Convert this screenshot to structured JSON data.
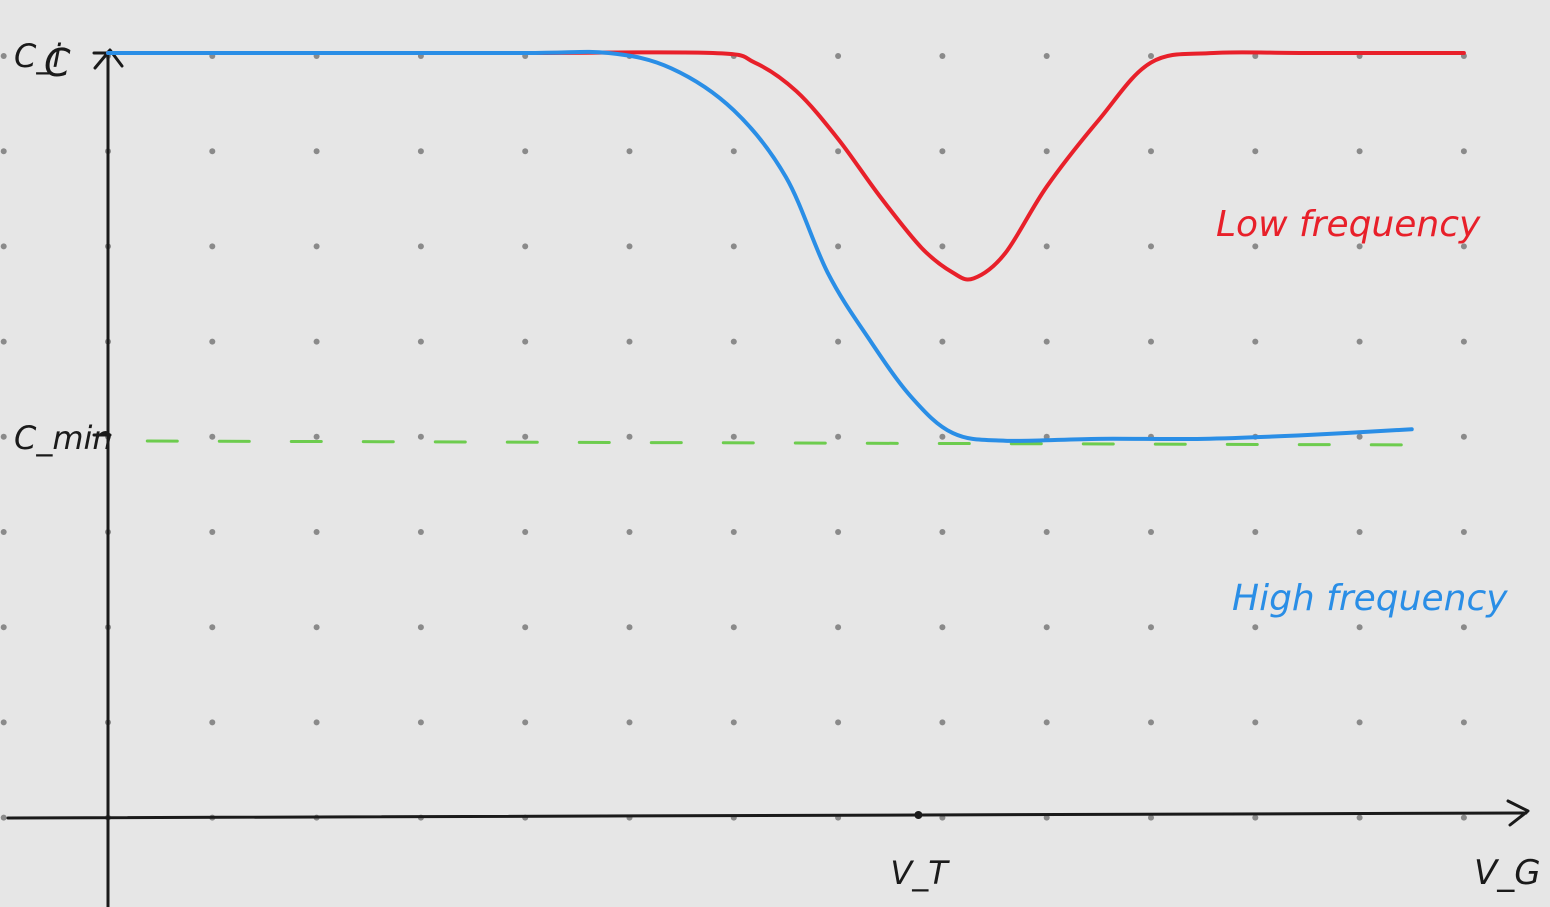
{
  "chart_data": {
    "type": "line",
    "xlabel": "V_G",
    "ylabel": "C",
    "xlim": [
      0,
      14
    ],
    "ylim": [
      0,
      6
    ],
    "grid": "dots",
    "x_ticks": [
      {
        "x": 8,
        "label": "V_T"
      }
    ],
    "y_ticks": [
      {
        "y": 4.0,
        "label": "C_i"
      },
      {
        "y": 2.0,
        "label": "C_min"
      }
    ],
    "series": [
      {
        "name": "Low frequency",
        "color": "#e8202a",
        "points": [
          [
            0.0,
            4.0
          ],
          [
            2.0,
            4.0
          ],
          [
            4.0,
            4.0
          ],
          [
            5.8,
            4.0
          ],
          [
            6.2,
            3.95
          ],
          [
            6.6,
            3.8
          ],
          [
            7.0,
            3.55
          ],
          [
            7.4,
            3.25
          ],
          [
            7.8,
            2.98
          ],
          [
            8.1,
            2.85
          ],
          [
            8.3,
            2.82
          ],
          [
            8.6,
            2.95
          ],
          [
            9.0,
            3.3
          ],
          [
            9.5,
            3.65
          ],
          [
            10.0,
            3.95
          ],
          [
            10.6,
            4.0
          ],
          [
            11.5,
            4.0
          ],
          [
            13.0,
            4.0
          ]
        ]
      },
      {
        "name": "High frequency",
        "color": "#2a8ee6",
        "points": [
          [
            0.0,
            4.0
          ],
          [
            2.0,
            4.0
          ],
          [
            4.0,
            4.0
          ],
          [
            4.8,
            4.0
          ],
          [
            5.4,
            3.92
          ],
          [
            6.0,
            3.7
          ],
          [
            6.5,
            3.35
          ],
          [
            6.9,
            2.85
          ],
          [
            7.3,
            2.5
          ],
          [
            7.7,
            2.2
          ],
          [
            8.1,
            2.01
          ],
          [
            8.6,
            1.97
          ],
          [
            9.5,
            1.98
          ],
          [
            10.5,
            1.98
          ],
          [
            11.5,
            2.0
          ],
          [
            12.5,
            2.03
          ]
        ]
      }
    ],
    "reference_lines": [
      {
        "y": 2.0,
        "color": "#6dcc4e",
        "style": "dashed",
        "x_range": [
          0.3,
          12.5
        ]
      }
    ],
    "annotations": [
      {
        "text": "Low frequency",
        "color": "#e8202a",
        "anchor": "above-right of Low frequency curve"
      },
      {
        "text": "High frequency",
        "color": "#2a8ee6",
        "anchor": "above-right of High frequency curve"
      }
    ]
  }
}
